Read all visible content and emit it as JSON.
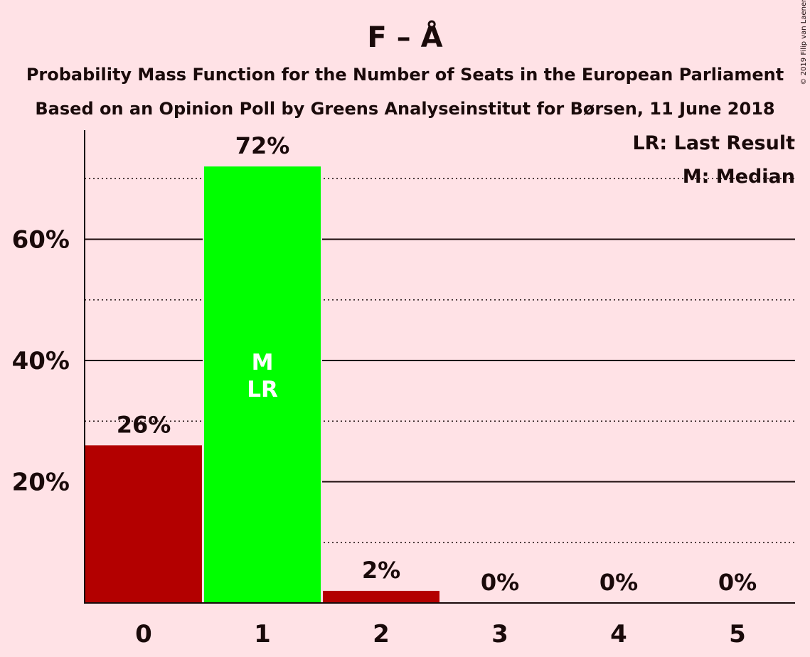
{
  "title": "F – Å",
  "subtitle_1": "Probability Mass Function for the Number of Seats in the European Parliament",
  "subtitle_2": "Based on an Opinion Poll by Greens Analyseinstitut for Børsen, 11 June 2018",
  "copyright": "© 2019 Filip van Laenen",
  "legend": {
    "last_result": "LR: Last Result",
    "median": "M: Median"
  },
  "colors": {
    "background": "#ffe2e6",
    "bar_default": "#b30000",
    "bar_highlight": "#00ff00",
    "text": "#1a0a0a"
  },
  "chart_data": {
    "type": "bar",
    "categories": [
      "0",
      "1",
      "2",
      "3",
      "4",
      "5"
    ],
    "values": [
      26,
      72,
      2,
      0,
      0,
      0
    ],
    "data_labels": [
      "26%",
      "72%",
      "2%",
      "0%",
      "0%",
      "0%"
    ],
    "ylim": [
      0,
      78
    ],
    "yticks": [
      20,
      40,
      60
    ],
    "ytick_labels": [
      "20%",
      "40%",
      "60%"
    ],
    "minor_gridlines": [
      10,
      30,
      50,
      70
    ],
    "highlight_index": 1,
    "median_index": 1,
    "last_result_index": 1,
    "median_marker": "M",
    "last_result_marker": "LR",
    "grid": true,
    "legend_position": "top-right"
  }
}
